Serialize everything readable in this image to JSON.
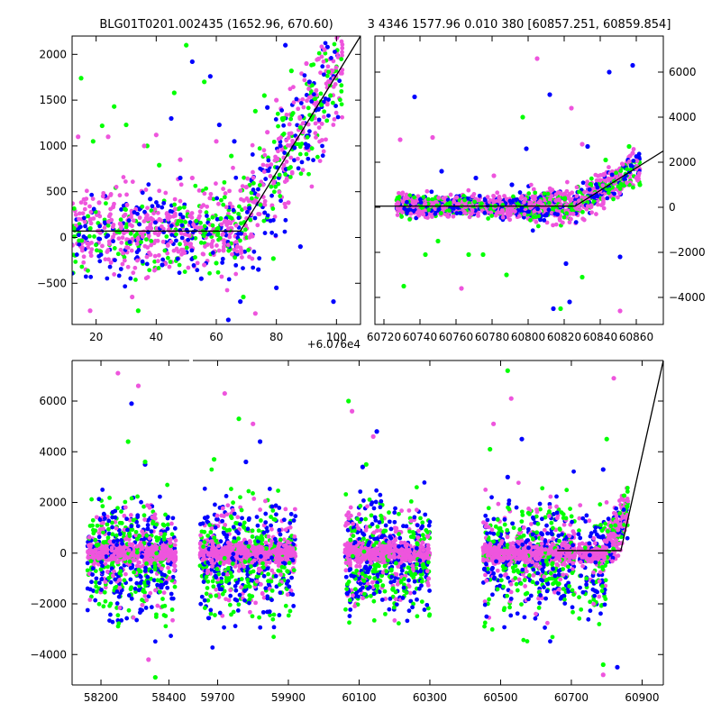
{
  "title_left": "BLG01T0201.002435 (1652.96, 670.60)",
  "title_right": "3 4346 1577.96 0.010 380 [60857.251, 60859.854]",
  "series_colors": {
    "blue": "#0000ff",
    "green": "#00ff00",
    "magenta": "#ee55dd",
    "model": "#000000"
  },
  "chart_data": [
    {
      "type": "scatter",
      "title": "BLG01T0201.002435 (1652.96, 670.60)",
      "x_offset_label": "+6.076e4",
      "x_offset": 60760,
      "xlim": [
        12,
        108
      ],
      "ylim": [
        -950,
        2200
      ],
      "xticks": [
        20,
        40,
        60,
        80,
        100
      ],
      "yticks": [
        -500,
        0,
        500,
        1000,
        1500,
        2000
      ],
      "grid": false,
      "model_line": [
        [
          12,
          70
        ],
        [
          68,
          70
        ],
        [
          108,
          2200
        ]
      ],
      "series": [
        {
          "color": "blue",
          "points": [
            [
              38,
              420
            ],
            [
              42,
              -300
            ],
            [
              45,
              1300
            ],
            [
              48,
              650
            ],
            [
              52,
              1920
            ],
            [
              55,
              -450
            ],
            [
              58,
              1760
            ],
            [
              61,
              1230
            ],
            [
              64,
              -900
            ],
            [
              66,
              1050
            ],
            [
              68,
              -700
            ],
            [
              71,
              320
            ],
            [
              74,
              -350
            ],
            [
              77,
              1420
            ],
            [
              80,
              -550
            ],
            [
              83,
              2100
            ],
            [
              86,
              980
            ],
            [
              88,
              -100
            ],
            [
              91,
              1700
            ],
            [
              94,
              1400
            ],
            [
              97,
              2080
            ],
            [
              99,
              -700
            ]
          ]
        },
        {
          "color": "green",
          "points": [
            [
              15,
              1740
            ],
            [
              19,
              1050
            ],
            [
              22,
              1220
            ],
            [
              26,
              1430
            ],
            [
              30,
              1230
            ],
            [
              34,
              -800
            ],
            [
              37,
              1000
            ],
            [
              41,
              790
            ],
            [
              46,
              1580
            ],
            [
              50,
              2100
            ],
            [
              56,
              1700
            ],
            [
              60,
              -280
            ],
            [
              65,
              890
            ],
            [
              69,
              -650
            ],
            [
              73,
              1380
            ],
            [
              76,
              1550
            ],
            [
              79,
              -230
            ],
            [
              82,
              1300
            ],
            [
              85,
              1820
            ],
            [
              88,
              1200
            ],
            [
              92,
              1320
            ],
            [
              95,
              1450
            ],
            [
              98,
              1550
            ]
          ]
        },
        {
          "color": "magenta",
          "points": [
            [
              14,
              1100
            ],
            [
              18,
              -800
            ],
            [
              21,
              380
            ],
            [
              24,
              1100
            ],
            [
              28,
              150
            ],
            [
              32,
              -650
            ],
            [
              36,
              1000
            ],
            [
              40,
              1120
            ],
            [
              44,
              200
            ],
            [
              48,
              850
            ],
            [
              52,
              650
            ],
            [
              56,
              -300
            ],
            [
              60,
              1050
            ],
            [
              63,
              180
            ],
            [
              67,
              -100
            ],
            [
              70,
              550
            ],
            [
              73,
              -830
            ],
            [
              77,
              1150
            ],
            [
              80,
              1500
            ],
            [
              84,
              380
            ],
            [
              87,
              1080
            ],
            [
              90,
              1900
            ],
            [
              94,
              1950
            ],
            [
              96,
              2050
            ],
            [
              98,
              1700
            ]
          ]
        }
      ]
    },
    {
      "type": "scatter",
      "title": "3 4346 1577.96 0.010 380 [60857.251, 60859.854]",
      "xlim": [
        60715,
        60875
      ],
      "ylim": [
        -5200,
        7600
      ],
      "xticks": [
        60720,
        60740,
        60760,
        60780,
        60800,
        60820,
        60840,
        60860
      ],
      "yticks": [
        -4000,
        -2000,
        0,
        2000,
        4000,
        6000
      ],
      "grid": false,
      "y_axis_side": "right",
      "model_line": [
        [
          60715,
          50
        ],
        [
          60826,
          50
        ],
        [
          60875,
          2500
        ]
      ],
      "series": [
        {
          "color": "blue",
          "points": [
            [
              60737,
              4900
            ],
            [
              60752,
              1600
            ],
            [
              60771,
              1300
            ],
            [
              60791,
              1000
            ],
            [
              60799,
              2600
            ],
            [
              60812,
              5000
            ],
            [
              60814,
              -4500
            ],
            [
              60821,
              -2500
            ],
            [
              60823,
              -4200
            ],
            [
              60833,
              2700
            ],
            [
              60845,
              6000
            ],
            [
              60851,
              -2200
            ],
            [
              60858,
              6300
            ]
          ]
        },
        {
          "color": "green",
          "points": [
            [
              60731,
              -3500
            ],
            [
              60743,
              -2100
            ],
            [
              60750,
              -1500
            ],
            [
              60767,
              -2100
            ],
            [
              60775,
              -2100
            ],
            [
              60788,
              -3000
            ],
            [
              60797,
              4000
            ],
            [
              60818,
              -4500
            ],
            [
              60830,
              -3100
            ],
            [
              60843,
              2100
            ],
            [
              60856,
              2700
            ],
            [
              60862,
              1000
            ]
          ]
        },
        {
          "color": "magenta",
          "points": [
            [
              60729,
              3000
            ],
            [
              60747,
              3100
            ],
            [
              60763,
              -3600
            ],
            [
              60781,
              1400
            ],
            [
              60805,
              6600
            ],
            [
              60824,
              4400
            ],
            [
              60830,
              2800
            ],
            [
              60840,
              1200
            ],
            [
              60851,
              -4600
            ],
            [
              60858,
              2400
            ]
          ]
        }
      ]
    },
    {
      "type": "scatter",
      "xlim": [
        58115,
        60960
      ],
      "ylim": [
        -5200,
        7600
      ],
      "xticks": [
        58200,
        58400,
        59700,
        59900,
        60100,
        60300,
        60500,
        60700,
        60900
      ],
      "yticks": [
        -4000,
        -2000,
        0,
        2000,
        4000,
        6000
      ],
      "grid": false,
      "broken_axis": true,
      "model_line": [
        [
          60660,
          100
        ],
        [
          60840,
          100
        ],
        [
          60960,
          7600
        ]
      ],
      "series": [
        {
          "color": "blue",
          "points": [
            [
              58290,
              5900
            ],
            [
              58330,
              3500
            ],
            [
              59780,
              3600
            ],
            [
              59820,
              4400
            ],
            [
              60110,
              3400
            ],
            [
              60150,
              4800
            ],
            [
              60520,
              3000
            ],
            [
              60560,
              4500
            ],
            [
              60790,
              3300
            ],
            [
              60830,
              -4500
            ]
          ]
        },
        {
          "color": "green",
          "points": [
            [
              58280,
              4400
            ],
            [
              58330,
              3600
            ],
            [
              58360,
              -4900
            ],
            [
              59690,
              3700
            ],
            [
              59760,
              5300
            ],
            [
              60070,
              6000
            ],
            [
              60120,
              3500
            ],
            [
              60470,
              4100
            ],
            [
              60520,
              7200
            ],
            [
              60800,
              4500
            ],
            [
              60790,
              -4400
            ]
          ]
        },
        {
          "color": "magenta",
          "points": [
            [
              58250,
              7100
            ],
            [
              58310,
              6600
            ],
            [
              58340,
              -4200
            ],
            [
              59720,
              6300
            ],
            [
              59800,
              5100
            ],
            [
              60080,
              5600
            ],
            [
              60140,
              4600
            ],
            [
              60480,
              5100
            ],
            [
              60530,
              6100
            ],
            [
              60820,
              6900
            ],
            [
              60790,
              -4800
            ]
          ]
        }
      ],
      "seasons": [
        {
          "xmin": 58160,
          "xmax": 58420
        },
        {
          "xmin": 59650,
          "xmax": 59920
        },
        {
          "xmin": 60060,
          "xmax": 60300
        },
        {
          "xmin": 60450,
          "xmax": 60710
        },
        {
          "xmin": 60720,
          "xmax": 60860
        }
      ]
    }
  ]
}
